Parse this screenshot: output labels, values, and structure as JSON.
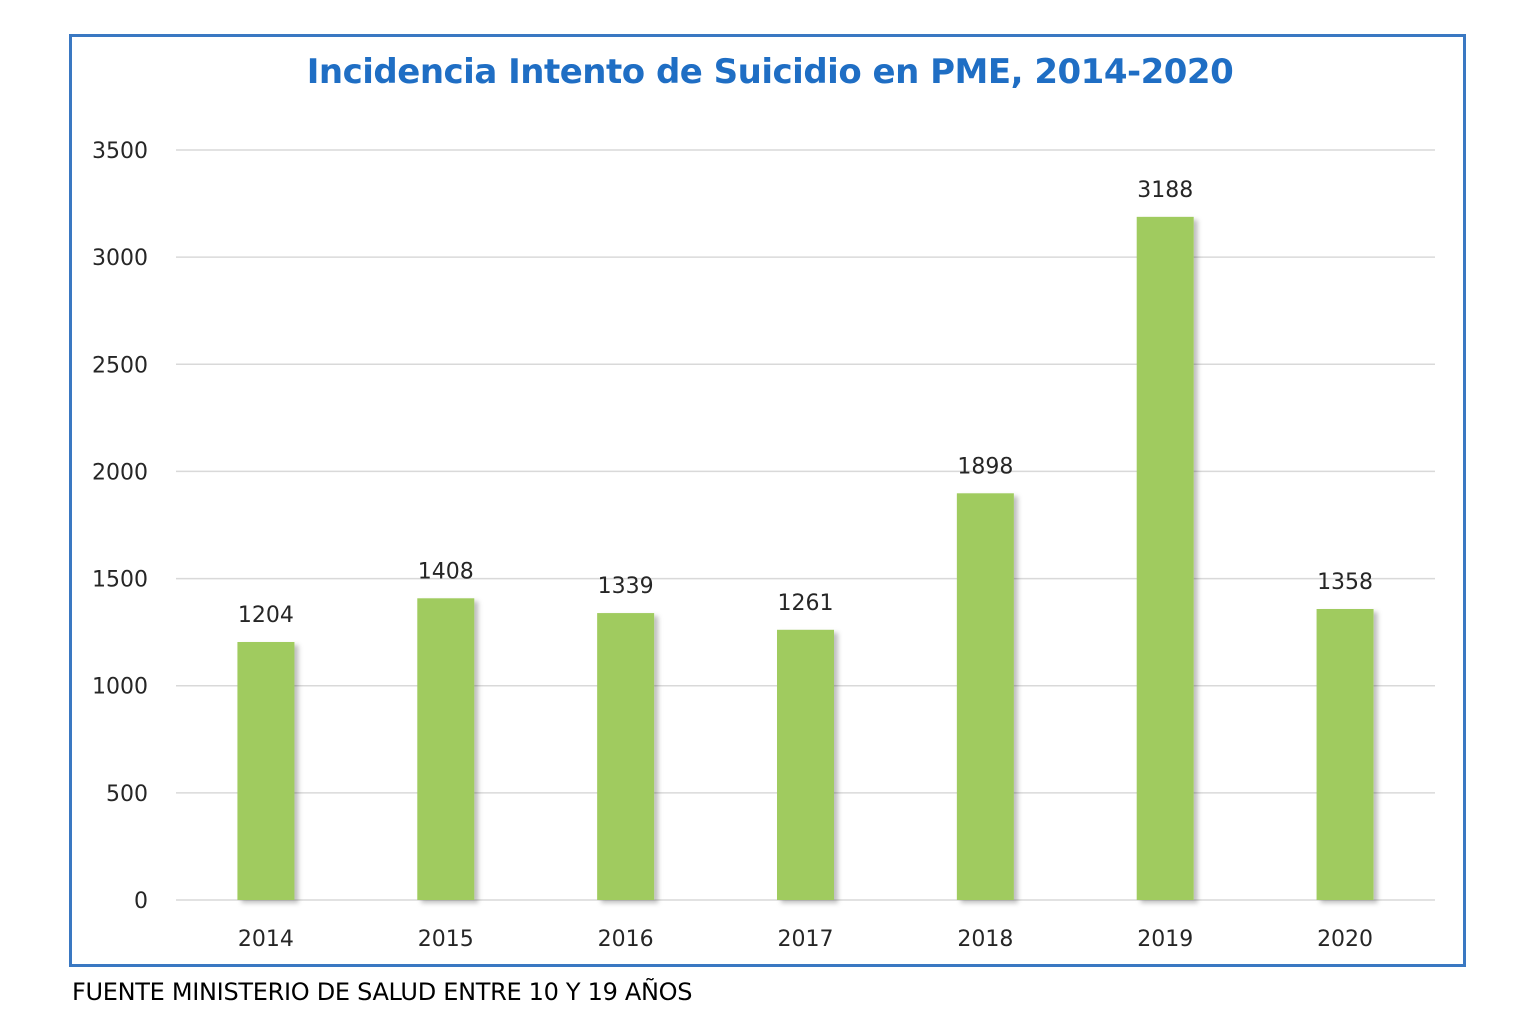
{
  "chart_data": {
    "type": "bar",
    "title": "Incidencia Intento de Suicidio  en PME, 2014-2020",
    "categories": [
      "2014",
      "2015",
      "2016",
      "2017",
      "2018",
      "2019",
      "2020"
    ],
    "values": [
      1204,
      1408,
      1339,
      1261,
      1898,
      3188,
      1358
    ],
    "data_labels": [
      "1204",
      "1408",
      "1339",
      "1261",
      "1898",
      "3188",
      "1358"
    ],
    "ylim": [
      0,
      3500
    ],
    "yticks": [
      0,
      500,
      1000,
      1500,
      2000,
      2500,
      3000,
      3500
    ],
    "xlabel": "",
    "ylabel": "",
    "grid": true,
    "legend": "none",
    "colors": {
      "bar": "#a0cb5f",
      "title": "#1f6ec4",
      "frame": "#3a78c2",
      "grid": "#d9d9d9"
    }
  },
  "footer": {
    "source": "FUENTE MINISTERIO DE SALUD ENTRE 10 Y 19 AÑOS"
  }
}
